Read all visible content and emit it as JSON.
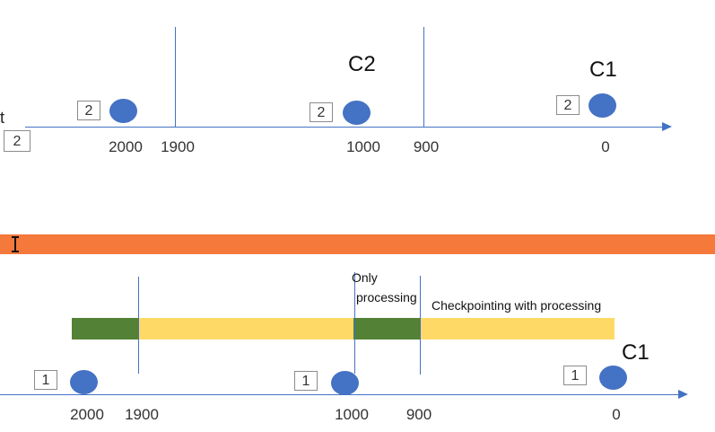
{
  "colors": {
    "axis": "#4472c4",
    "dot": "#4472c4",
    "divider": "#f4793b",
    "green": "#538135",
    "yellow": "#ffd966"
  },
  "top": {
    "ticks": [
      "2000",
      "1900",
      "1000",
      "900",
      "0"
    ],
    "labels": {
      "c2": "C2",
      "c1": "C1"
    },
    "boxes": [
      "2",
      "2",
      "2"
    ],
    "edge_box": "2",
    "edge_glyph": "t"
  },
  "divider": {
    "cursor_icon": "text-cursor-icon"
  },
  "bottom": {
    "ticks": [
      "2000",
      "1900",
      "1000",
      "900",
      "0"
    ],
    "labels": {
      "only": "Only",
      "processing": "processing",
      "checkpointing": "Checkpointing with processing",
      "c1": "C1"
    },
    "boxes": [
      "1",
      "1",
      "1"
    ]
  }
}
